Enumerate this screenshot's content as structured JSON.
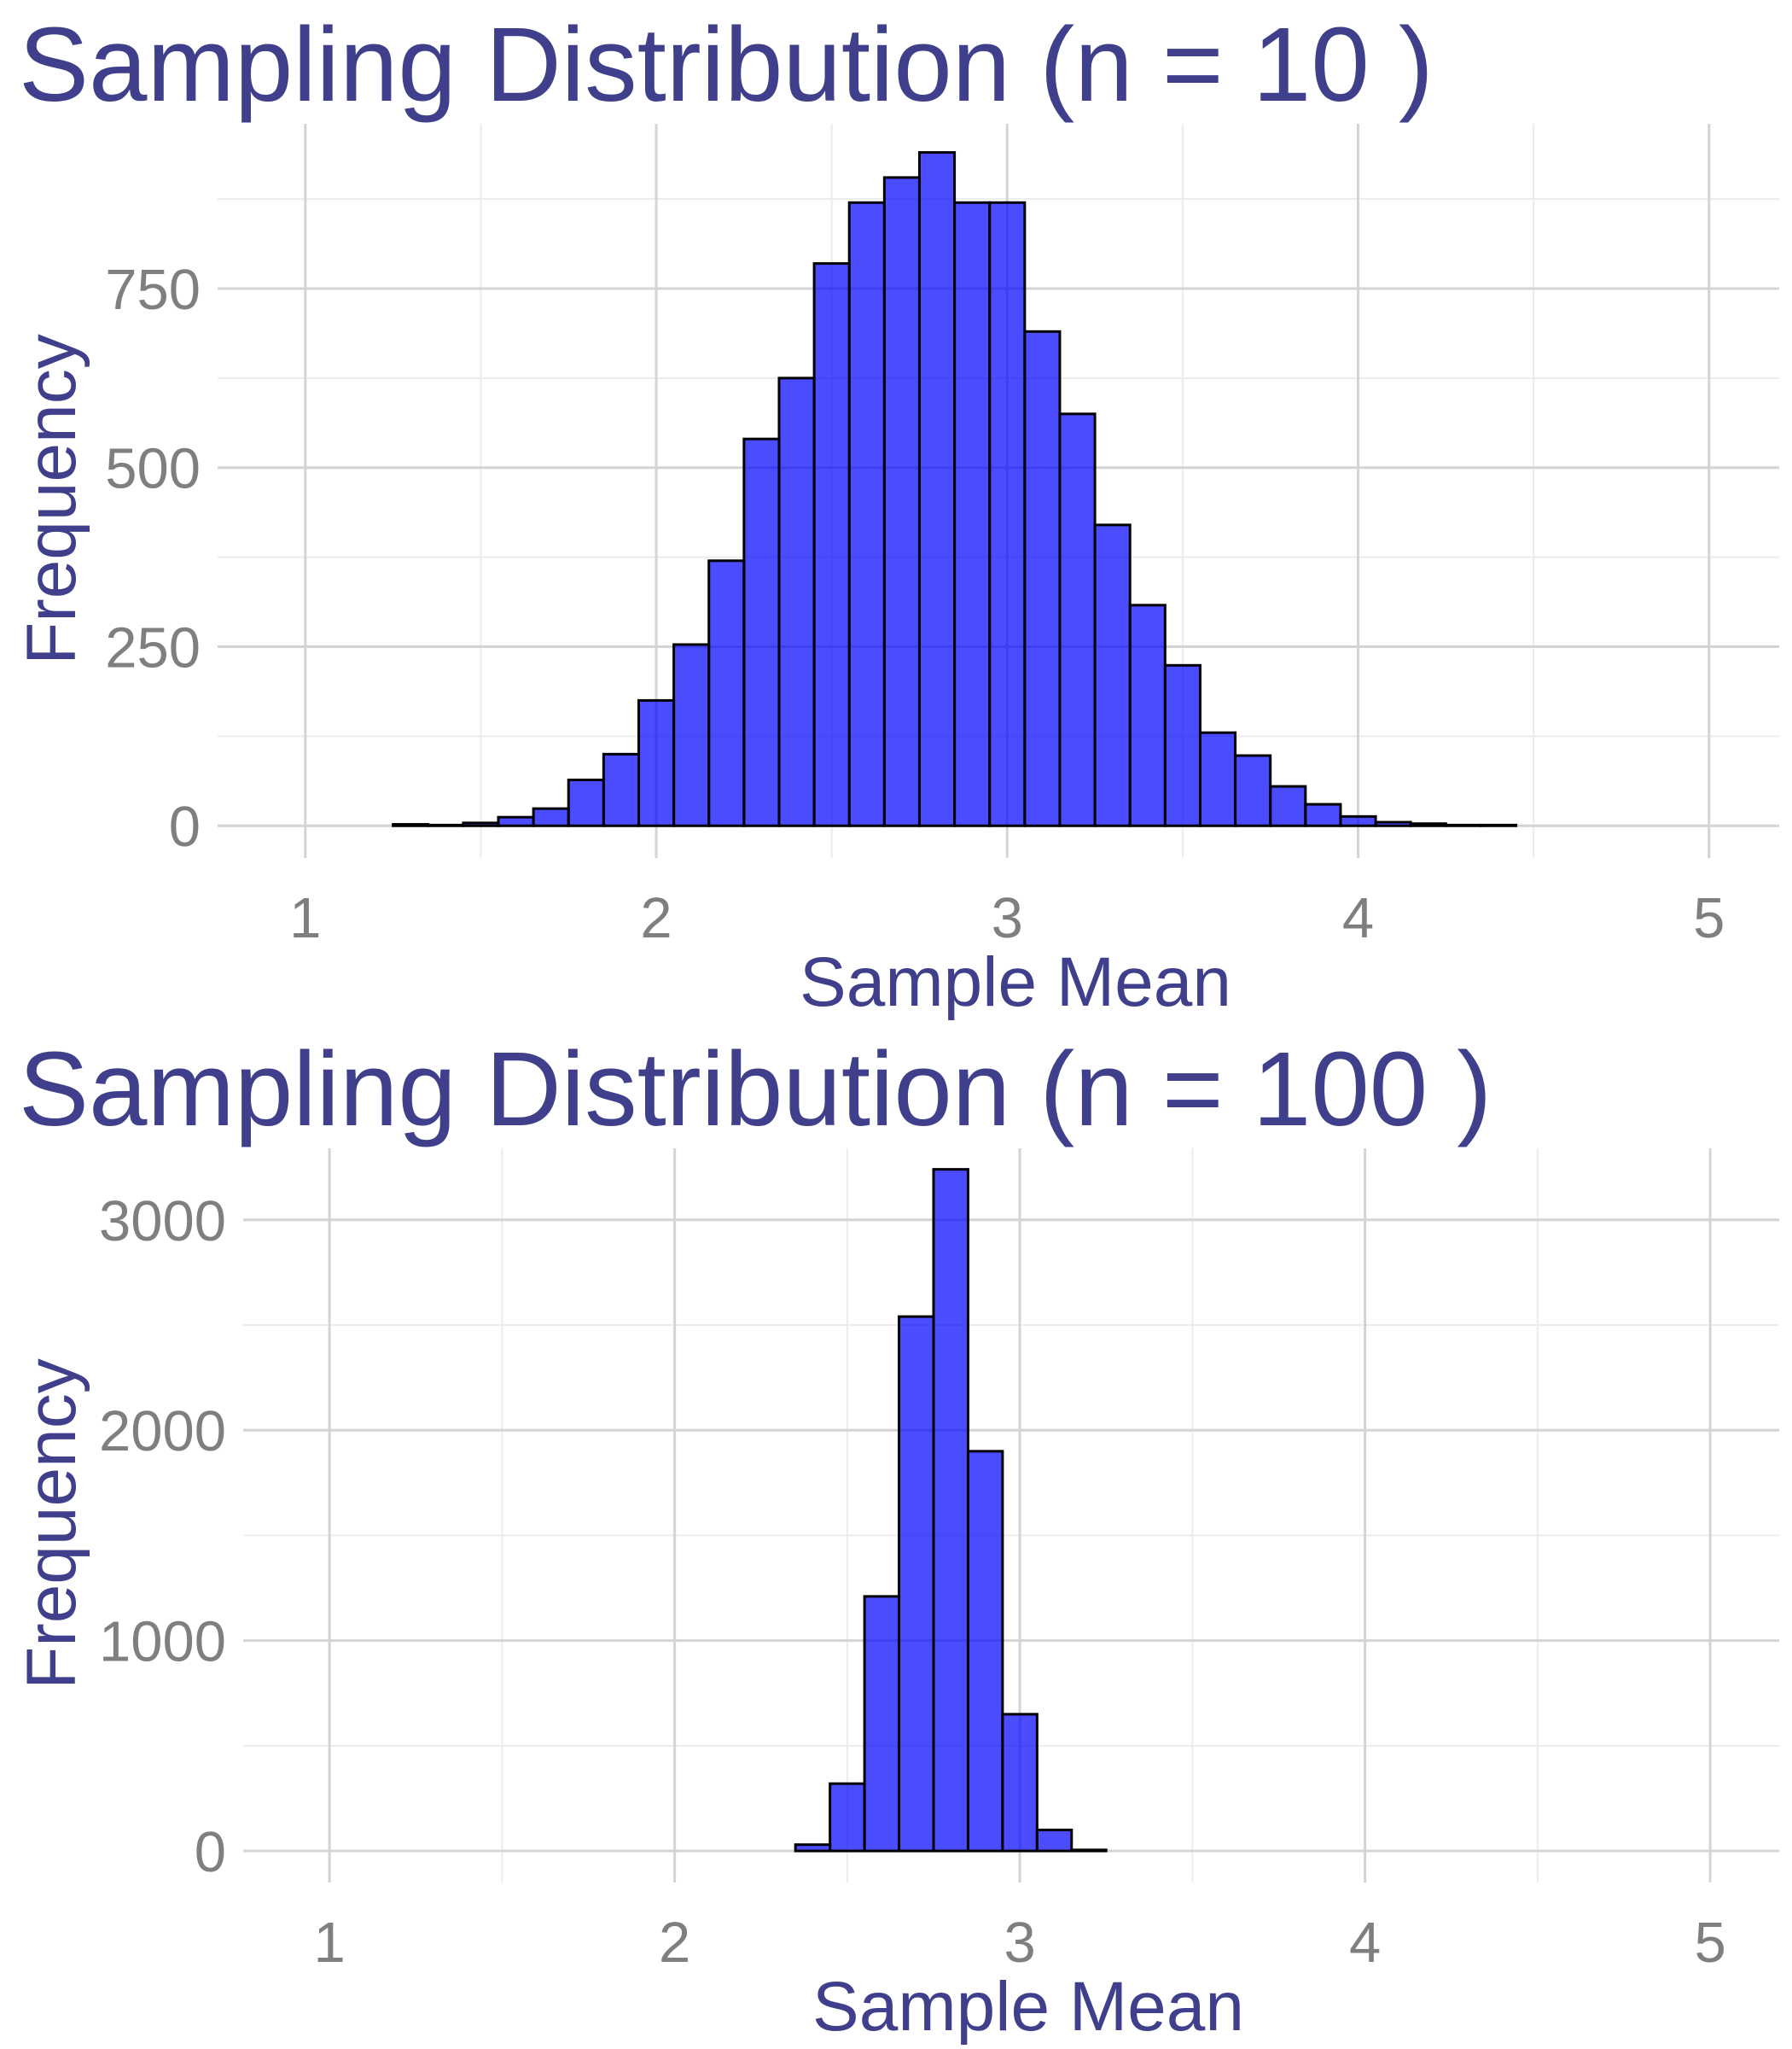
{
  "chart_data": [
    {
      "type": "bar",
      "title": "Sampling Distribution (n = 10 )",
      "xlabel": "Sample Mean",
      "ylabel": "Frequency",
      "xlim": [
        0.75,
        5.2
      ],
      "ylim": [
        -45,
        980
      ],
      "x_ticks": [
        1,
        2,
        3,
        4,
        5
      ],
      "y_ticks": [
        0,
        250,
        500,
        750
      ],
      "x_tick_labels": [
        "1",
        "2",
        "3",
        "4",
        "5"
      ],
      "y_tick_labels": [
        "0",
        "250",
        "500",
        "750"
      ],
      "grid": true,
      "bar_color": "#0000ff",
      "bar_opacity": 0.7,
      "bin_width": 0.1,
      "bin_centers": [
        1.1,
        1.2,
        1.3,
        1.4,
        1.5,
        1.6,
        1.7,
        1.8,
        1.9,
        2.0,
        2.1,
        2.2,
        2.3,
        2.4,
        2.5,
        2.6,
        2.7,
        2.8,
        2.9,
        3.0,
        3.1,
        3.2,
        3.3,
        3.4,
        3.5,
        3.6,
        3.7,
        3.8,
        3.9,
        4.0,
        4.1,
        4.2,
        4.3,
        4.4,
        4.5,
        4.6,
        4.7,
        4.8,
        4.9
      ],
      "values": [
        0,
        0,
        2,
        1,
        4,
        12,
        24,
        64,
        100,
        175,
        253,
        370,
        540,
        625,
        785,
        870,
        905,
        940,
        870,
        870,
        690,
        575,
        420,
        308,
        224,
        130,
        98,
        55,
        30,
        13,
        5,
        3,
        1,
        1,
        0,
        0,
        0,
        0,
        0
      ]
    },
    {
      "type": "bar",
      "title": "Sampling Distribution (n = 100 )",
      "xlabel": "Sample Mean",
      "ylabel": "Frequency",
      "xlim": [
        0.75,
        5.2
      ],
      "ylim": [
        -150,
        3340
      ],
      "x_ticks": [
        1,
        2,
        3,
        4,
        5
      ],
      "y_ticks": [
        0,
        1000,
        2000,
        3000
      ],
      "x_tick_labels": [
        "1",
        "2",
        "3",
        "4",
        "5"
      ],
      "y_tick_labels": [
        "0",
        "1000",
        "2000",
        "3000"
      ],
      "grid": true,
      "bar_color": "#0000ff",
      "bar_opacity": 0.7,
      "bin_width": 0.1,
      "bin_centers": [
        1.1,
        1.2,
        1.3,
        1.4,
        1.5,
        1.6,
        1.7,
        1.8,
        1.9,
        2.0,
        2.1,
        2.2,
        2.3,
        2.4,
        2.5,
        2.6,
        2.7,
        2.8,
        2.9,
        3.0,
        3.1,
        3.2,
        3.3,
        3.4,
        3.5,
        3.6,
        3.7,
        3.8,
        3.9,
        4.0,
        4.1,
        4.2,
        4.3,
        4.4,
        4.5,
        4.6,
        4.7,
        4.8,
        4.9
      ],
      "values": [
        0,
        0,
        0,
        0,
        0,
        0,
        0,
        0,
        0,
        0,
        0,
        0,
        0,
        30,
        320,
        1210,
        2540,
        3240,
        1900,
        650,
        100,
        5,
        0,
        0,
        0,
        0,
        0,
        0,
        0,
        0,
        0,
        0,
        0,
        0,
        0,
        0,
        0,
        0,
        0
      ]
    }
  ]
}
